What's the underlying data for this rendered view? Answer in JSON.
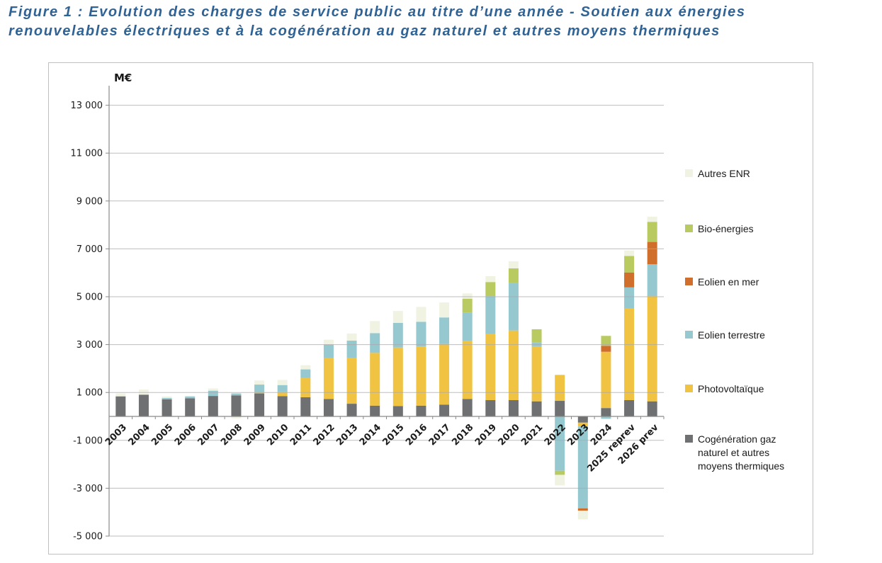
{
  "figure": {
    "title_line1": "Figure 1 : Evolution des charges de service public au titre d’une année - Soutien aux énergies",
    "title_line2": "renouvelables électriques et à la cogénération au gaz naturel et autres moyens thermiques",
    "title_color": "#2F6295"
  },
  "chart_data": {
    "type": "bar",
    "stacked": true,
    "title": "",
    "unit_label": "M€",
    "xlabel": "",
    "ylabel": "M€",
    "ylim": [
      -5000,
      13800
    ],
    "yticks": [
      13000,
      11000,
      9000,
      7000,
      5000,
      3000,
      1000,
      -1000,
      -3000,
      -5000
    ],
    "grid": true,
    "legend_position": "right",
    "categories": [
      "2003",
      "2004",
      "2005",
      "2006",
      "2007",
      "2008",
      "2009",
      "2010",
      "2011",
      "2012",
      "2013",
      "2014",
      "2015",
      "2016",
      "2017",
      "2018",
      "2019",
      "2020",
      "2021",
      "2022",
      "2023",
      "2024",
      "2025 reprev",
      "2026 prev"
    ],
    "series": [
      {
        "name": "Cogénération gaz naturel et autres moyens thermiques",
        "color": "#6E7071",
        "values": [
          830,
          900,
          715,
          760,
          855,
          880,
          960,
          850,
          800,
          730,
          530,
          450,
          435,
          450,
          490,
          730,
          680,
          680,
          630,
          650,
          -260,
          350,
          680,
          630
        ]
      },
      {
        "name": "Photovoltaïque",
        "color": "#F0C342",
        "values": [
          0,
          0,
          0,
          0,
          0,
          0,
          30,
          175,
          800,
          1700,
          1905,
          2205,
          2445,
          2470,
          2540,
          2415,
          2765,
          2910,
          2300,
          1085,
          -160,
          2350,
          3820,
          4395
        ]
      },
      {
        "name": "Eolien terrestre",
        "color": "#96C8D0",
        "values": [
          20,
          20,
          60,
          75,
          220,
          80,
          340,
          285,
          365,
          570,
          730,
          825,
          1025,
          1035,
          1105,
          1185,
          1580,
          1975,
          170,
          -2270,
          -3420,
          -100,
          890,
          1330
        ]
      },
      {
        "name": "Eolien en mer",
        "color": "#D06E2B",
        "values": [
          0,
          0,
          0,
          0,
          0,
          0,
          0,
          0,
          0,
          0,
          0,
          0,
          0,
          0,
          0,
          0,
          0,
          0,
          0,
          0,
          -100,
          250,
          625,
          935
        ]
      },
      {
        "name": "Bio-énergies",
        "color": "#B9CB60",
        "values": [
          0,
          0,
          0,
          0,
          0,
          0,
          0,
          0,
          0,
          0,
          0,
          0,
          0,
          0,
          0,
          590,
          590,
          620,
          540,
          -170,
          0,
          415,
          690,
          840
        ]
      },
      {
        "name": "Autres ENR",
        "color": "#F1F3E2",
        "values": [
          110,
          200,
          60,
          30,
          95,
          -80,
          170,
          215,
          175,
          205,
          300,
          505,
          500,
          620,
          625,
          220,
          245,
          295,
          0,
          -440,
          -360,
          0,
          230,
          215
        ]
      }
    ],
    "legend_order": [
      "Autres ENR",
      "Bio-énergies",
      "Eolien en mer",
      "Eolien terrestre",
      "Photovoltaïque",
      "Cogénération gaz naturel et autres moyens thermiques"
    ]
  },
  "colors": {
    "gridline": "#A9A9A9",
    "axis": "#8A8A8A",
    "chart_border": "#C0C0C0",
    "text": "#1A1A1A"
  }
}
